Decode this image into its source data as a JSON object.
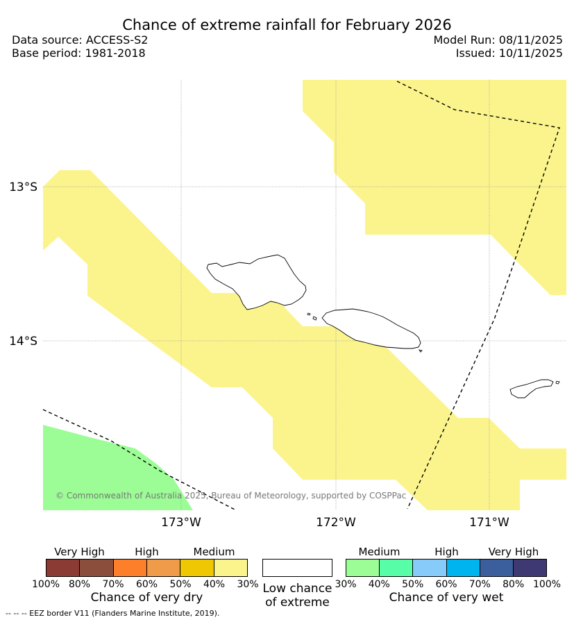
{
  "title": "Chance of extreme rainfall for February 2026",
  "header": {
    "data_source": "Data source: ACCESS-S2",
    "base_period": "Base period: 1981-2018",
    "model_run": "Model Run: 08/11/2025",
    "issued": "Issued: 10/11/2025"
  },
  "map": {
    "latitude_labels": [
      "13°S",
      "14°S"
    ],
    "longitude_labels": [
      "173°W",
      "172°W",
      "171°W"
    ],
    "credit": "© Commonwealth of Australia 2025, Bureau of Meteorology, supported by COSPPac",
    "colors": {
      "medium_dry": "#fbf48d",
      "medium_wet": "#9cfd96",
      "eez_line": "#000000",
      "land_outline": "#000000",
      "grid": "#999999"
    }
  },
  "legend": {
    "dry": {
      "headings": [
        "Very High",
        "High",
        "Medium"
      ],
      "ticks": [
        "100%",
        "80%",
        "70%",
        "60%",
        "50%",
        "40%",
        "30%"
      ],
      "colors": [
        "#8b3a34",
        "#8b4e3c",
        "#fd7f2a",
        "#ef9b4a",
        "#efc803",
        "#fbf48d"
      ],
      "title": "Chance of very dry"
    },
    "low": {
      "title_line1": "Low chance",
      "title_line2": "of extreme",
      "color": "#ffffff"
    },
    "wet": {
      "headings": [
        "Medium",
        "High",
        "Very High"
      ],
      "ticks": [
        "30%",
        "40%",
        "50%",
        "60%",
        "70%",
        "80%",
        "100%"
      ],
      "colors": [
        "#9cfd96",
        "#58fda8",
        "#87cbfb",
        "#00b5ef",
        "#3a5f9c",
        "#3e3873"
      ],
      "title": "Chance of very wet"
    }
  },
  "footnote": "-- -- -- EEZ border V11 (Flanders Marine Institute, 2019)."
}
